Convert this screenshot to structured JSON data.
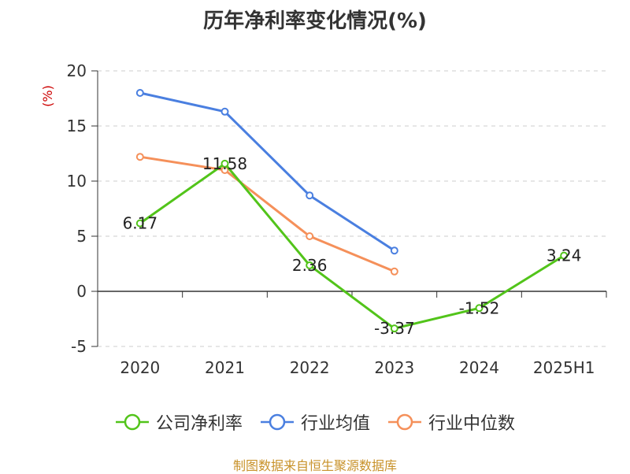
{
  "chart_data": {
    "type": "line",
    "title": "历年净利率变化情况(%)",
    "ylabel": "(%)",
    "xlabel": "",
    "categories": [
      "2020",
      "2021",
      "2022",
      "2023",
      "2024",
      "2025H1"
    ],
    "ylim": [
      -5,
      20
    ],
    "yticks": [
      20,
      15,
      10,
      5,
      0,
      -5
    ],
    "grid": true,
    "legend_position": "bottom",
    "series": [
      {
        "name": "公司净利率",
        "color": "#52c41a",
        "values": [
          6.17,
          11.58,
          2.36,
          -3.37,
          -1.52,
          3.24
        ],
        "labels": [
          "6.17",
          "11.58",
          "2.36",
          "-3.37",
          "-1.52",
          "3.24"
        ]
      },
      {
        "name": "行业均值",
        "color": "#4a7fe0",
        "values": [
          18.0,
          16.3,
          8.7,
          3.7,
          null,
          null
        ]
      },
      {
        "name": "行业中位数",
        "color": "#f5905a",
        "values": [
          12.2,
          11.0,
          5.0,
          1.8,
          null,
          null
        ]
      }
    ]
  },
  "source": "制图数据来自恒生聚源数据库"
}
